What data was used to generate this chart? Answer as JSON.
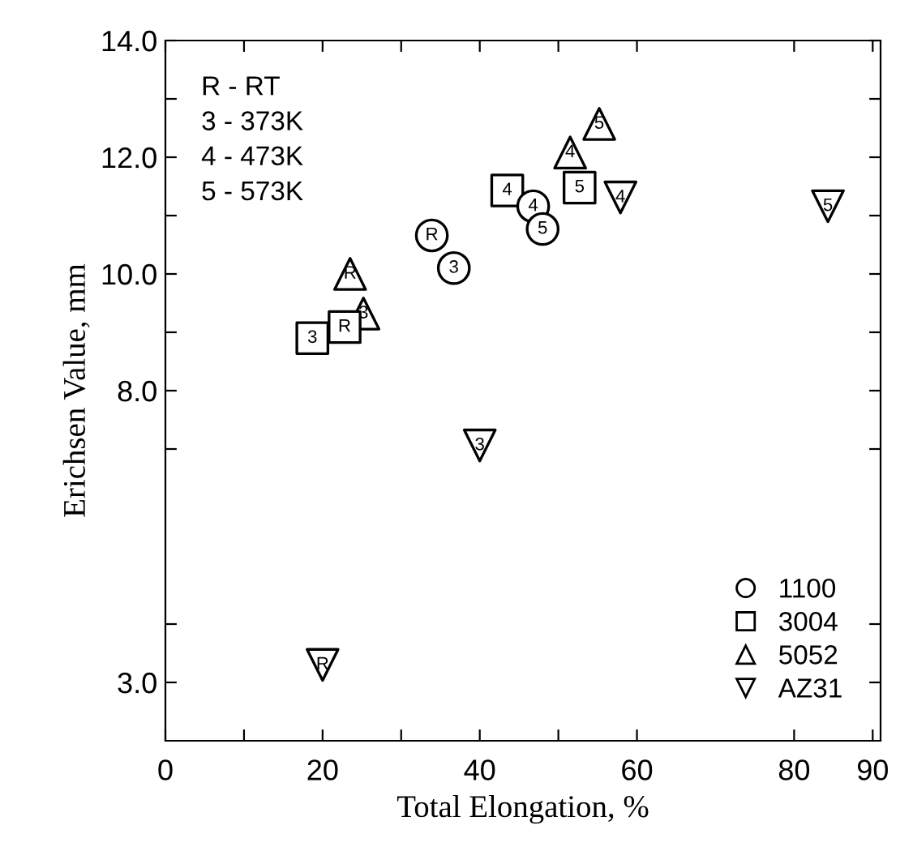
{
  "chart_data": {
    "type": "scatter",
    "xlabel": "Total Elongation, %",
    "ylabel": "Erichsen Value, mm",
    "xlim": [
      0,
      91
    ],
    "ylim": [
      2.0,
      14
    ],
    "xticks": [
      0,
      {
        "value": 10,
        "label": null
      },
      20,
      {
        "value": 30,
        "label": null
      },
      40,
      {
        "value": 50,
        "label": null
      },
      60,
      80,
      90
    ],
    "yticks": [
      {
        "value": 3,
        "label": "3.0"
      },
      {
        "value": 4,
        "label": null
      },
      {
        "value": 7,
        "label": null
      },
      {
        "value": 8,
        "label": "8.0"
      },
      {
        "value": 9,
        "label": null
      },
      {
        "value": 10,
        "label": "10.0"
      },
      {
        "value": 11,
        "label": null
      },
      {
        "value": 12,
        "label": "12.0"
      },
      {
        "value": 13,
        "label": null
      },
      {
        "value": 14,
        "label": "14.0"
      }
    ],
    "legend": "bottom right",
    "grid": false,
    "series": [
      {
        "name": "1100",
        "color": "#000000",
        "marker": "circle",
        "x": [
          33.9,
          36.7,
          46.8,
          48.0
        ],
        "values": [
          10.66,
          10.1,
          11.16,
          10.77
        ]
      },
      {
        "name": "3004",
        "color": "#000000",
        "marker": "square",
        "x": [
          22.8,
          18.7,
          43.5,
          52.7
        ],
        "values": [
          9.09,
          8.9,
          11.43,
          11.48
        ]
      },
      {
        "name": "5052",
        "color": "#000000",
        "marker": "triangle",
        "x": [
          23.5,
          25.2,
          51.5,
          55.2
        ],
        "values": [
          10.0,
          9.32,
          12.08,
          12.57
        ]
      },
      {
        "name": "AZ31",
        "color": "#000000",
        "marker": "triangle_down",
        "x": [
          20.0,
          40.0,
          57.9,
          84.3
        ],
        "values": [
          3.3,
          7.06,
          11.31,
          11.16
        ]
      }
    ],
    "annotations": [
      "R - RT",
      "3 - 373K",
      "4 - 473K",
      "5 - 573K",
      {
        "text": "R",
        "x": 33.9,
        "y": 10.66
      },
      {
        "text": "3",
        "x": 36.7,
        "y": 10.1
      },
      {
        "text": "4",
        "x": 46.8,
        "y": 11.16
      },
      {
        "text": "5",
        "x": 48.0,
        "y": 10.77
      },
      {
        "text": "R",
        "x": 22.8,
        "y": 9.09
      },
      {
        "text": "3",
        "x": 18.7,
        "y": 8.9
      },
      {
        "text": "4",
        "x": 43.5,
        "y": 11.43
      },
      {
        "text": "5",
        "x": 52.7,
        "y": 11.48
      },
      {
        "text": "R",
        "x": 23.5,
        "y": 10.0
      },
      {
        "text": "3",
        "x": 25.2,
        "y": 9.32
      },
      {
        "text": "4",
        "x": 51.5,
        "y": 12.08
      },
      {
        "text": "5",
        "x": 55.2,
        "y": 12.57
      },
      {
        "text": "R",
        "x": 20.0,
        "y": 3.3
      },
      {
        "text": "3",
        "x": 40.0,
        "y": 7.06
      },
      {
        "text": "4",
        "x": 57.9,
        "y": 11.31
      },
      {
        "text": "5",
        "x": 84.3,
        "y": 11.16
      }
    ]
  }
}
